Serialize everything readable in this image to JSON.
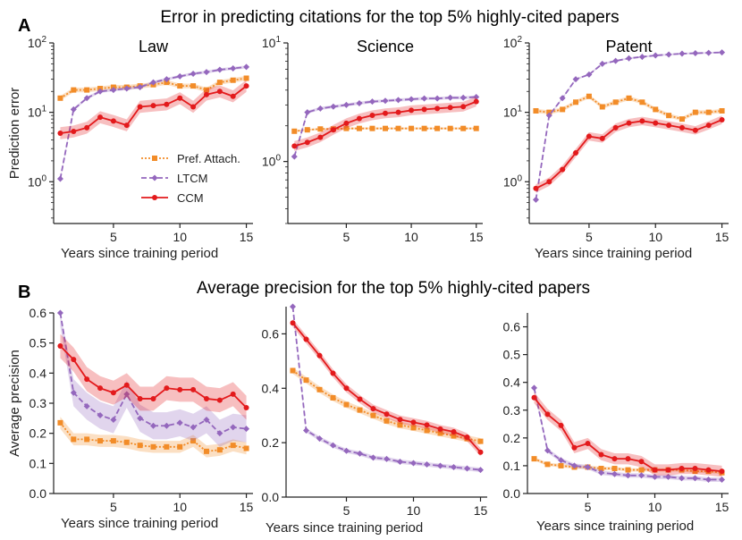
{
  "figure": {
    "row_a": {
      "panel_label": "A",
      "title": "Error in predicting citations for the top 5%  highly-cited papers"
    },
    "row_b": {
      "panel_label": "B",
      "title": "Average precision for the top 5% highly-cited papers"
    }
  },
  "colors": {
    "Pref. Attach.": "#f28c28",
    "LTCM": "#9467bd",
    "CCM": "#e31a1c"
  },
  "legend": [
    "Pref. Attach.",
    "LTCM",
    "CCM"
  ],
  "chart_data": [
    {
      "type": "line",
      "title": "Law",
      "xlabel": "Years since training period",
      "ylabel": "Prediction error",
      "yscale": "log",
      "xlim": [
        0.5,
        15.5
      ],
      "ylim": [
        0.25,
        100
      ],
      "yticks": [
        1,
        10,
        100
      ],
      "ytick_labels": [
        "10^0",
        "10^1",
        "10^2"
      ],
      "xticks": [
        5,
        10,
        15
      ],
      "xtick_labels": [
        "5",
        "10",
        "15"
      ],
      "x": [
        1,
        2,
        3,
        4,
        5,
        6,
        7,
        8,
        9,
        10,
        11,
        12,
        13,
        14,
        15
      ],
      "series": [
        {
          "name": "Pref. Attach.",
          "values": [
            16,
            21,
            21,
            22,
            23,
            23,
            24,
            25,
            27,
            24,
            24,
            21,
            27,
            29,
            31
          ],
          "band": 0.08
        },
        {
          "name": "LTCM",
          "values": [
            1.1,
            11,
            16,
            20,
            21,
            22,
            23,
            27,
            30,
            33,
            36,
            38,
            41,
            43,
            45
          ],
          "band": 0.05
        },
        {
          "name": "CCM",
          "values": [
            5,
            5.3,
            6,
            8.5,
            7.5,
            6.5,
            12,
            12.5,
            13,
            16,
            12,
            18,
            20,
            17,
            24
          ],
          "band": 0.22
        }
      ]
    },
    {
      "type": "line",
      "title": "Science",
      "xlabel": "",
      "ylabel": "",
      "yscale": "log",
      "xlim": [
        0.5,
        15.5
      ],
      "ylim": [
        0.3,
        10
      ],
      "yticks": [
        1,
        10
      ],
      "ytick_labels": [
        "10^0",
        "10^1"
      ],
      "xticks": [
        5,
        10,
        15
      ],
      "xtick_labels": [
        "5",
        "10",
        "15"
      ],
      "x": [
        1,
        2,
        3,
        4,
        5,
        6,
        7,
        8,
        9,
        10,
        11,
        12,
        13,
        14,
        15
      ],
      "series": [
        {
          "name": "Pref. Attach.",
          "values": [
            1.8,
            1.85,
            1.88,
            1.88,
            1.9,
            1.9,
            1.9,
            1.9,
            1.9,
            1.9,
            1.9,
            1.9,
            1.9,
            1.9,
            1.9
          ],
          "band": 0.02
        },
        {
          "name": "LTCM",
          "values": [
            1.1,
            2.6,
            2.8,
            2.9,
            3.0,
            3.1,
            3.2,
            3.25,
            3.3,
            3.35,
            3.4,
            3.4,
            3.45,
            3.45,
            3.5
          ],
          "band": 0.03
        },
        {
          "name": "CCM",
          "values": [
            1.35,
            1.45,
            1.6,
            1.85,
            2.1,
            2.3,
            2.45,
            2.55,
            2.6,
            2.7,
            2.75,
            2.8,
            2.85,
            2.9,
            3.2
          ],
          "band": 0.1
        }
      ]
    },
    {
      "type": "line",
      "title": "Patent",
      "xlabel": "Years since training period",
      "ylabel": "",
      "yscale": "log",
      "xlim": [
        0.5,
        15.5
      ],
      "ylim": [
        0.25,
        100
      ],
      "yticks": [
        1,
        10,
        100
      ],
      "ytick_labels": [
        "10^0",
        "10^1",
        "10^2"
      ],
      "xticks": [
        5,
        10,
        15
      ],
      "xtick_labels": [
        "5",
        "10",
        "15"
      ],
      "x": [
        1,
        2,
        3,
        4,
        5,
        6,
        7,
        8,
        9,
        10,
        11,
        12,
        13,
        14,
        15
      ],
      "series": [
        {
          "name": "Pref. Attach.",
          "values": [
            10.5,
            10,
            11,
            14,
            17,
            12,
            14,
            16,
            14,
            11,
            9,
            8,
            10,
            10,
            10.5
          ],
          "band": 0.07
        },
        {
          "name": "LTCM",
          "values": [
            0.55,
            9,
            16,
            30,
            35,
            50,
            55,
            60,
            63,
            66,
            68,
            70,
            71,
            72,
            73
          ],
          "band": 0.03
        },
        {
          "name": "CCM",
          "values": [
            0.8,
            1.0,
            1.5,
            2.6,
            4.5,
            4.2,
            6,
            7,
            7.5,
            7,
            6.5,
            6,
            5.5,
            6.5,
            7.8
          ],
          "band": 0.15
        }
      ]
    },
    {
      "type": "line",
      "title": "",
      "xlabel": "Years since training period",
      "ylabel": "Average precision",
      "yscale": "linear",
      "xlim": [
        0.5,
        15.5
      ],
      "ylim": [
        0,
        0.6
      ],
      "yticks": [
        0,
        0.1,
        0.2,
        0.3,
        0.4,
        0.5,
        0.6
      ],
      "ytick_labels": [
        "0.0",
        "0.1",
        "0.2",
        "0.3",
        "0.4",
        "0.5",
        "0.6"
      ],
      "xticks": [
        5,
        10,
        15
      ],
      "xtick_labels": [
        "5",
        "10",
        "15"
      ],
      "x": [
        1,
        2,
        3,
        4,
        5,
        6,
        7,
        8,
        9,
        10,
        11,
        12,
        13,
        14,
        15
      ],
      "series": [
        {
          "name": "Pref. Attach.",
          "values": [
            0.235,
            0.18,
            0.18,
            0.175,
            0.175,
            0.17,
            0.16,
            0.155,
            0.155,
            0.155,
            0.175,
            0.14,
            0.145,
            0.16,
            0.15
          ],
          "band": 0.02
        },
        {
          "name": "LTCM",
          "values": [
            0.6,
            0.335,
            0.29,
            0.26,
            0.245,
            0.33,
            0.25,
            0.225,
            0.225,
            0.235,
            0.22,
            0.245,
            0.2,
            0.22,
            0.215
          ],
          "band": 0.045
        },
        {
          "name": "CCM",
          "values": [
            0.49,
            0.445,
            0.38,
            0.35,
            0.335,
            0.36,
            0.315,
            0.315,
            0.35,
            0.345,
            0.345,
            0.315,
            0.31,
            0.33,
            0.285
          ],
          "band": 0.04
        }
      ]
    },
    {
      "type": "line",
      "title": "",
      "xlabel": "Years since training period",
      "ylabel": "",
      "yscale": "linear",
      "xlim": [
        0.5,
        15.5
      ],
      "ylim": [
        0,
        0.7
      ],
      "yticks": [
        0,
        0.2,
        0.4,
        0.6
      ],
      "ytick_labels": [
        "0.0",
        "0.2",
        "0.4",
        "0.6"
      ],
      "xticks": [
        5,
        10,
        15
      ],
      "xtick_labels": [
        "5",
        "10",
        "15"
      ],
      "x": [
        1,
        2,
        3,
        4,
        5,
        6,
        7,
        8,
        9,
        10,
        11,
        12,
        13,
        14,
        15
      ],
      "series": [
        {
          "name": "Pref. Attach.",
          "values": [
            0.465,
            0.43,
            0.395,
            0.365,
            0.34,
            0.32,
            0.3,
            0.28,
            0.265,
            0.255,
            0.245,
            0.235,
            0.225,
            0.215,
            0.205
          ],
          "band": 0.012
        },
        {
          "name": "LTCM",
          "values": [
            0.7,
            0.245,
            0.215,
            0.19,
            0.17,
            0.16,
            0.145,
            0.14,
            0.13,
            0.125,
            0.12,
            0.115,
            0.11,
            0.105,
            0.1
          ],
          "band": 0.008
        },
        {
          "name": "CCM",
          "values": [
            0.64,
            0.58,
            0.52,
            0.455,
            0.4,
            0.36,
            0.325,
            0.305,
            0.285,
            0.275,
            0.265,
            0.25,
            0.24,
            0.22,
            0.165
          ],
          "band": 0.015
        }
      ]
    },
    {
      "type": "line",
      "title": "",
      "xlabel": "Years since training period",
      "ylabel": "",
      "yscale": "linear",
      "xlim": [
        0.5,
        15.5
      ],
      "ylim": [
        0,
        0.65
      ],
      "yticks": [
        0,
        0.1,
        0.2,
        0.3,
        0.4,
        0.5,
        0.6
      ],
      "ytick_labels": [
        "0.0",
        "0.1",
        "0.2",
        "0.3",
        "0.4",
        "0.5",
        "0.6"
      ],
      "xticks": [
        5,
        10,
        15
      ],
      "xtick_labels": [
        "5",
        "10",
        "15"
      ],
      "x": [
        1,
        2,
        3,
        4,
        5,
        6,
        7,
        8,
        9,
        10,
        11,
        12,
        13,
        14,
        15
      ],
      "series": [
        {
          "name": "Pref. Attach.",
          "values": [
            0.125,
            0.105,
            0.1,
            0.095,
            0.095,
            0.09,
            0.09,
            0.085,
            0.085,
            0.085,
            0.085,
            0.085,
            0.08,
            0.08,
            0.075
          ],
          "band": 0.006
        },
        {
          "name": "LTCM",
          "values": [
            0.38,
            0.155,
            0.12,
            0.1,
            0.095,
            0.075,
            0.07,
            0.065,
            0.065,
            0.06,
            0.06,
            0.055,
            0.055,
            0.05,
            0.05
          ],
          "band": 0.008
        },
        {
          "name": "CCM",
          "values": [
            0.345,
            0.285,
            0.245,
            0.165,
            0.18,
            0.14,
            0.125,
            0.125,
            0.115,
            0.085,
            0.085,
            0.09,
            0.09,
            0.085,
            0.08
          ],
          "band": 0.02
        }
      ]
    }
  ]
}
